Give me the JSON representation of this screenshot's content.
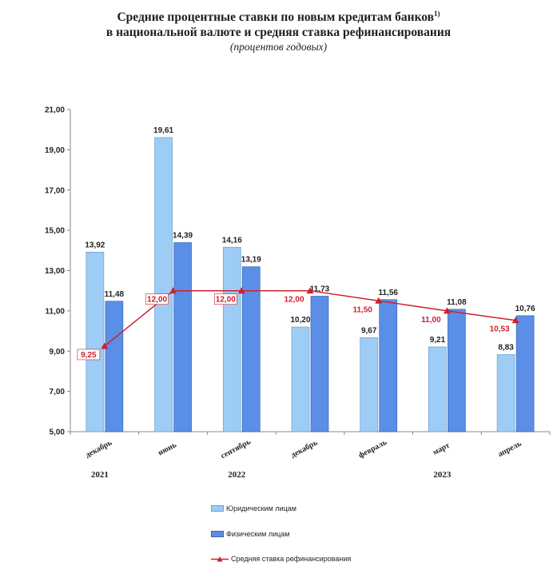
{
  "title": {
    "line1": "Средние процентные ставки по новым кредитам банков",
    "footnote_mark": "1)",
    "line2": "в национальной валюте и средняя ставка рефинансирования",
    "subtitle": "(процентов годовых)"
  },
  "colors": {
    "legal": "#9dccf5",
    "physical": "#5b8ee6",
    "refinancing": "#d0202a"
  },
  "chart_data": {
    "type": "bar",
    "categories": [
      "декабрь",
      "июнь",
      "сентябрь",
      "декабрь",
      "февраль",
      "март",
      "апрель"
    ],
    "year_labels": [
      {
        "label": "2021",
        "category_index": 0
      },
      {
        "label": "2022",
        "category_index": 2
      },
      {
        "label": "2023",
        "category_index": 5
      }
    ],
    "ylim": [
      5,
      21
    ],
    "yticks": [
      "5,00",
      "7,00",
      "9,00",
      "11,00",
      "13,00",
      "15,00",
      "17,00",
      "19,00",
      "21,00"
    ],
    "series": [
      {
        "name": "Юридическим лицам",
        "type": "bar",
        "values": [
          13.92,
          19.61,
          14.16,
          10.2,
          9.67,
          9.21,
          8.83
        ],
        "labels": [
          "13,92",
          "19,61",
          "14,16",
          "10,20",
          "9,67",
          "9,21",
          "8,83"
        ]
      },
      {
        "name": "Физическим лицам",
        "type": "bar",
        "values": [
          11.48,
          14.39,
          13.19,
          11.73,
          11.56,
          11.08,
          10.76
        ],
        "labels": [
          "11,48",
          "14,39",
          "13,19",
          "11,73",
          "11,56",
          "11,08",
          "10,76"
        ]
      },
      {
        "name": "Средняя ставка рефинансирования",
        "type": "line",
        "values": [
          9.25,
          12.0,
          12.0,
          12.0,
          11.5,
          11.0,
          10.53
        ],
        "labels": [
          "9,25",
          "12,00",
          "12,00",
          "12,00",
          "11,50",
          "11,00",
          "10,53"
        ]
      }
    ]
  }
}
